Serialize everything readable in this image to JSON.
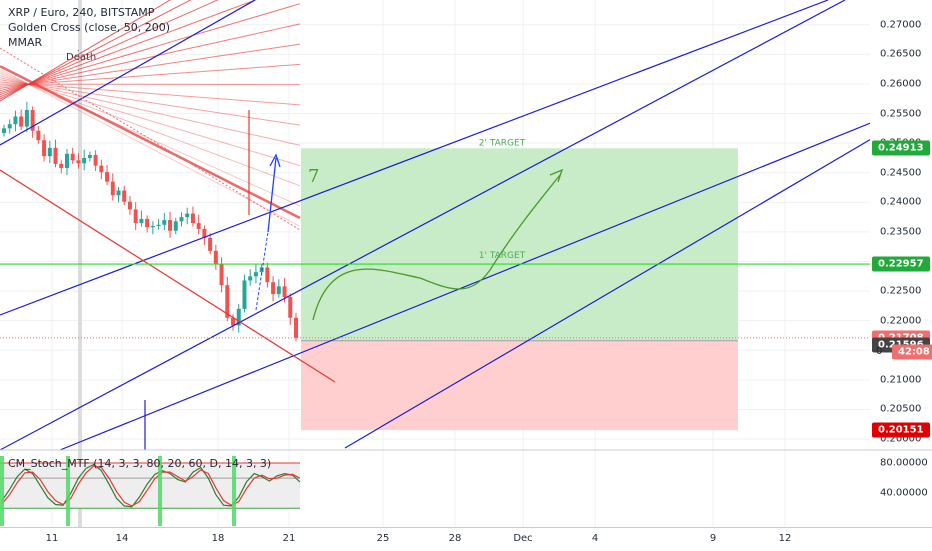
{
  "legend": {
    "symbol": "XRP / Euro, 240, BITSTAMP",
    "study1": "Golden Cross (close, 50, 200)",
    "study2": "MMAR",
    "death_label": "Death"
  },
  "indicator": {
    "label": "CM_Stoch_MTF (14, 3, 3, 80, 20, 60, D, 14, 3, 3)"
  },
  "drawings": {
    "target1": "1' TARGET",
    "target2": "2' TARGET",
    "handwritten_7": "7"
  },
  "colors": {
    "up": "#26a69a",
    "down": "#ef5350",
    "channel": "#1e1ed2",
    "green_line": "#2bd92b",
    "ma": "#e53935",
    "profit_zone": "#c8ebc8",
    "loss_zone": "#ffcfcf"
  },
  "chart_data": [
    {
      "type": "candlestick",
      "title": "XRP / Euro, 240, BITSTAMP",
      "y_axis_ticks": [
        0.27,
        0.265,
        0.26,
        0.255,
        0.25,
        0.245,
        0.24,
        0.235,
        0.23,
        0.225,
        0.22,
        0.215,
        0.21,
        0.205,
        0.2
      ],
      "ylim": [
        0.1995,
        0.2725
      ],
      "x_ticks": [
        "11",
        "14",
        "18",
        "21",
        "25",
        "28",
        "Dec",
        "4",
        "9",
        "12"
      ],
      "price_labels": [
        {
          "value": 0.24913,
          "label": "0.24913",
          "color": "#1faa3a"
        },
        {
          "value": 0.22957,
          "label": "0.22957",
          "color": "#1faa3a"
        },
        {
          "value": 0.21708,
          "label": "0.21708",
          "color": "#f06e6e"
        },
        {
          "value": 0.21596,
          "label": "0.21596",
          "color": "#444444"
        },
        {
          "value": 0.20151,
          "label": "0.20151",
          "color": "#e00000"
        }
      ],
      "countdown": "42:08",
      "zero_marker": "0",
      "horizontal_line": 0.22957,
      "long_position": {
        "entry": 0.2166,
        "target": 0.24913,
        "stop": 0.20151
      },
      "closes": [
        0.2525,
        0.2532,
        0.2545,
        0.2528,
        0.2556,
        0.2521,
        0.2505,
        0.2478,
        0.2492,
        0.2465,
        0.2458,
        0.2482,
        0.2471,
        0.2466,
        0.2475,
        0.248,
        0.2462,
        0.2451,
        0.2435,
        0.2412,
        0.242,
        0.2401,
        0.2388,
        0.2365,
        0.2372,
        0.2358,
        0.236,
        0.2362,
        0.237,
        0.2352,
        0.2368,
        0.2375,
        0.2381,
        0.2365,
        0.2355,
        0.234,
        0.2318,
        0.2295,
        0.226,
        0.2205,
        0.2192,
        0.222,
        0.2268,
        0.2275,
        0.2282,
        0.229,
        0.2265,
        0.2245,
        0.2258,
        0.224,
        0.2205,
        0.2171
      ]
    },
    {
      "type": "line",
      "title": "CM_Stoch_MTF (14, 3, 3, 80, 20, 60, D, 14, 3, 3)",
      "y_axis_ticks": [
        80,
        40
      ],
      "y_tick_labels": [
        "80.00000",
        "40.00000"
      ],
      "ylim": [
        15,
        88
      ],
      "levels": [
        80,
        60,
        20
      ],
      "series": [
        {
          "name": "",
          "color": "#2e7d32",
          "values": [
            30,
            45,
            62,
            72,
            66,
            50,
            34,
            25,
            24,
            40,
            60,
            73,
            78,
            70,
            52,
            33,
            23,
            22,
            35,
            52,
            65,
            70,
            66,
            58,
            55,
            68,
            74,
            60,
            38,
            24,
            23,
            35,
            55,
            66,
            62,
            56,
            63,
            66,
            64,
            55
          ]
        },
        {
          "name": "",
          "color": "#e53935",
          "values": [
            26,
            38,
            54,
            67,
            68,
            58,
            42,
            30,
            25,
            33,
            52,
            67,
            76,
            74,
            60,
            42,
            28,
            23,
            29,
            44,
            59,
            68,
            68,
            62,
            56,
            62,
            71,
            66,
            47,
            30,
            24,
            29,
            46,
            60,
            64,
            59,
            60,
            64,
            65,
            60
          ]
        }
      ]
    }
  ]
}
